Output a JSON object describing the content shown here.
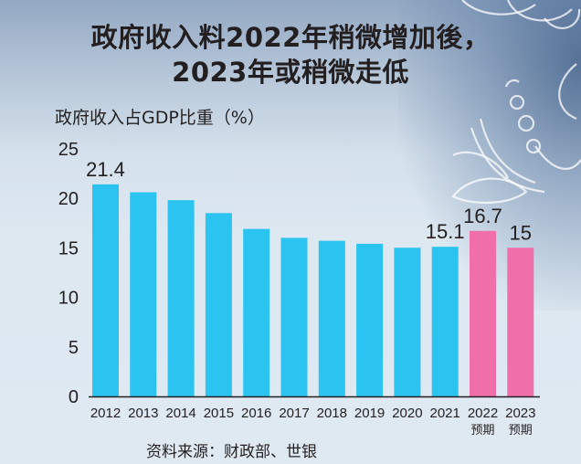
{
  "title_line1": "政府收入料2022年稍微增加後，",
  "title_line2": "2023年或稍微走低",
  "source": "资料来源：财政部、世银",
  "colors": {
    "actual": "#2bc3ef",
    "forecast": "#f06fa8",
    "axis": "#231f20"
  },
  "chart_data": {
    "type": "bar",
    "title": "政府收入料2022年稍微增加後，2023年或稍微走低",
    "xlabel": "",
    "ylabel": "政府收入占GDP比重（%）",
    "ylim": [
      0,
      25
    ],
    "yticks": [
      0,
      5,
      10,
      15,
      20,
      25
    ],
    "grid": false,
    "categories": [
      "2012",
      "2013",
      "2014",
      "2015",
      "2016",
      "2017",
      "2018",
      "2019",
      "2020",
      "2021",
      "2022",
      "2023"
    ],
    "category_sublabels": [
      "",
      "",
      "",
      "",
      "",
      "",
      "",
      "",
      "",
      "",
      "预期",
      "预期"
    ],
    "series": [
      {
        "name": "政府收入占GDP比重",
        "values": [
          21.4,
          20.6,
          19.8,
          18.5,
          16.9,
          16.0,
          15.7,
          15.4,
          15.0,
          15.1,
          16.7,
          15.0
        ],
        "kind": [
          "actual",
          "actual",
          "actual",
          "actual",
          "actual",
          "actual",
          "actual",
          "actual",
          "actual",
          "actual",
          "forecast",
          "forecast"
        ]
      }
    ],
    "data_labels": [
      {
        "index": 0,
        "text": "21.4"
      },
      {
        "index": 9,
        "text": "15.1"
      },
      {
        "index": 10,
        "text": "16.7"
      },
      {
        "index": 11,
        "text": "15"
      }
    ]
  }
}
